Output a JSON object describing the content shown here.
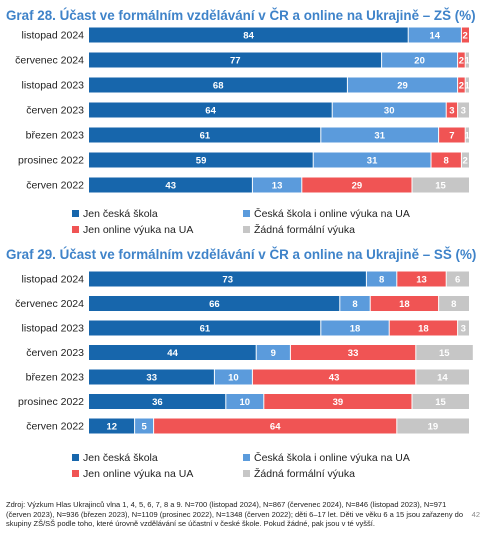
{
  "colors": {
    "title": "#3f83c9",
    "cz_only": "#1766ac",
    "cz_and_ua": "#5b9bdc",
    "ua_only": "#f05454",
    "none": "#c6c6c6"
  },
  "chart_data": [
    {
      "type": "bar",
      "orientation": "horizontal",
      "stacked": true,
      "title": "Graf 28. Účast ve formálním vzdělávání v ČR a online na Ukrajině – ZŠ (%)",
      "categories": [
        "listopad 2024",
        "červenec 2024",
        "listopad 2023",
        "červen 2023",
        "březen 2023",
        "prosinec 2022",
        "červen 2022"
      ],
      "series": [
        {
          "name": "Jen česká škola",
          "values": [
            84,
            77,
            68,
            64,
            61,
            59,
            43
          ]
        },
        {
          "name": "Česká škola i online výuka na UA",
          "values": [
            14,
            20,
            29,
            30,
            31,
            31,
            13
          ]
        },
        {
          "name": "Jen online výuka na UA",
          "values": [
            2,
            2,
            2,
            3,
            7,
            8,
            29
          ]
        },
        {
          "name": "Žádná formální výuka",
          "values": [
            0,
            1,
            1,
            3,
            1,
            2,
            15
          ]
        }
      ],
      "legend_position": "bottom",
      "xlim": [
        0,
        100
      ]
    },
    {
      "type": "bar",
      "orientation": "horizontal",
      "stacked": true,
      "title": "Graf 29. Účast ve formálním vzdělávání v ČR a online na Ukrajině – SŠ (%)",
      "categories": [
        "listopad 2024",
        "červenec 2024",
        "listopad 2023",
        "červen 2023",
        "březen 2023",
        "prosinec 2022",
        "červen 2022"
      ],
      "series": [
        {
          "name": "Jen česká škola",
          "values": [
            73,
            66,
            61,
            44,
            33,
            36,
            12
          ]
        },
        {
          "name": "Česká škola i online výuka na UA",
          "values": [
            8,
            8,
            18,
            9,
            10,
            10,
            5
          ]
        },
        {
          "name": "Jen online výuka na UA",
          "values": [
            13,
            18,
            18,
            33,
            43,
            39,
            64
          ]
        },
        {
          "name": "Žádná formální výuka",
          "values": [
            6,
            8,
            3,
            15,
            14,
            15,
            19
          ]
        }
      ],
      "legend_position": "bottom",
      "xlim": [
        0,
        100
      ]
    }
  ],
  "footer": {
    "source": "Zdroj: Výzkum Hlas Ukrajinců vlna 1, 4, 5, 6, 7, 8 a 9. N=700 (listopad 2024), N=867 (červenec 2024), N=846 (listopad 2023), N=971 (červen 2023), N=936 (březen 2023), N=1109 (prosinec 2022), N=1348 (červen 2022); děti 6–17 let. Děti ve věku 6 a 15 jsou zařazeny do skupiny ZŠ/SŠ podle toho, které úrovně vzdělávání se účastní v české škole. Pokud žádné, pak jsou v té vyšší.",
    "page_number": "42"
  }
}
